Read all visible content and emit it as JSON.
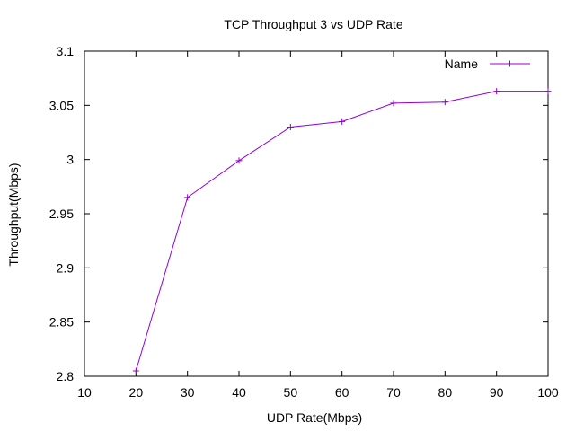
{
  "chart_data": {
    "type": "line",
    "title": "TCP Throughput 3 vs UDP Rate",
    "xlabel": "UDP Rate(Mbps)",
    "ylabel": "Throughput(Mbps)",
    "xlim": [
      10,
      100
    ],
    "ylim": [
      2.8,
      3.1
    ],
    "xticks": [
      "10",
      "20",
      "30",
      "40",
      "50",
      "60",
      "70",
      "80",
      "90",
      "100"
    ],
    "yticks": [
      "2.8",
      "2.85",
      "2.9",
      "2.95",
      "3",
      "3.05",
      "3.1"
    ],
    "grid": false,
    "legend_position": "top-right",
    "series": [
      {
        "name": "Name",
        "color": "#9400d3",
        "marker": "plus",
        "x": [
          20,
          30,
          40,
          50,
          60,
          70,
          80,
          90,
          100
        ],
        "y": [
          2.805,
          2.965,
          2.999,
          3.03,
          3.035,
          3.052,
          3.053,
          3.063,
          3.063
        ]
      }
    ]
  }
}
